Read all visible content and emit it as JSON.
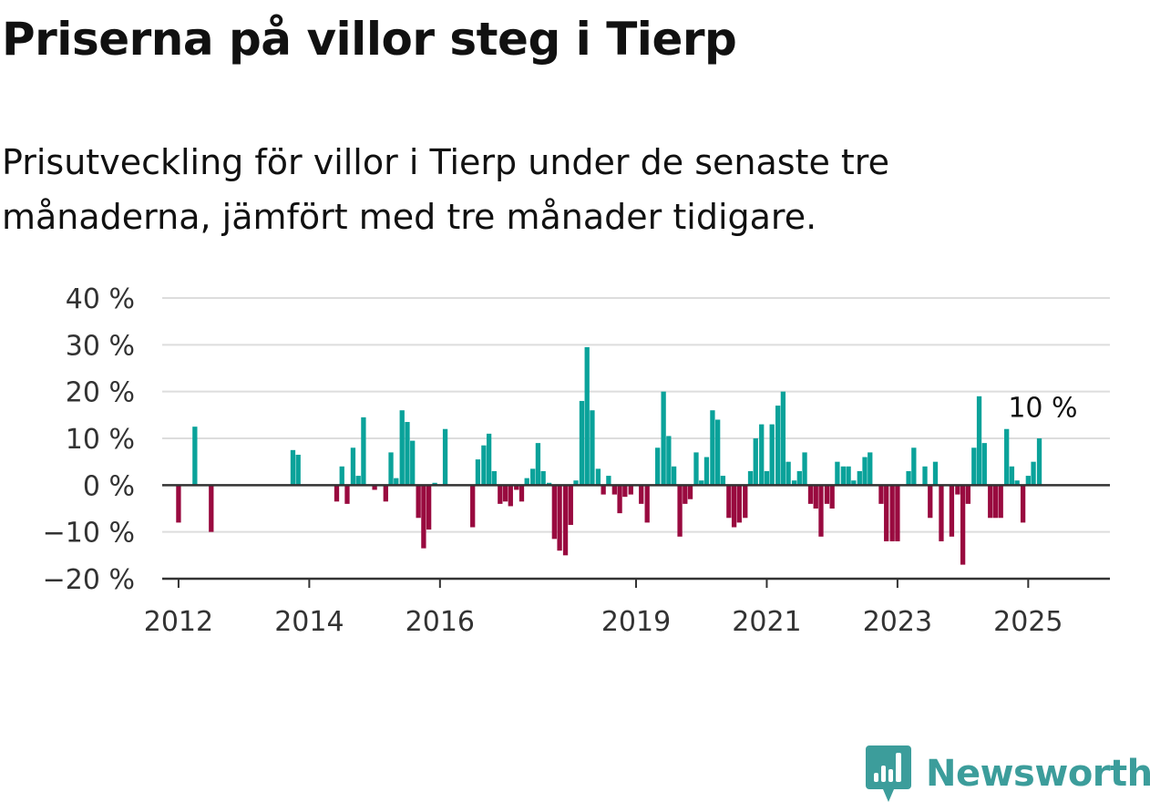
{
  "title": "Priserna på villor steg i Tierp",
  "subtitle": "Prisutveckling för villor i Tierp under de senaste tre månaderna, jämfört med tre månader tidigare.",
  "brand": {
    "name": "Newsworthy",
    "color": "#3c9d9b"
  },
  "colors": {
    "positive": "#0aa29a",
    "negative": "#990a3f",
    "grid": "#dddddd",
    "axis": "#333333"
  },
  "chart_data": {
    "type": "bar",
    "title": "Priserna på villor steg i Tierp",
    "xlabel": "",
    "ylabel": "",
    "unit": "%",
    "ylim": [
      -20,
      40
    ],
    "yticks": [
      40,
      30,
      20,
      10,
      0,
      -10,
      -20
    ],
    "ytick_labels": [
      "40 %",
      "30 %",
      "20 %",
      "10 %",
      "0 %",
      "−10 %",
      "−20 %"
    ],
    "xlim": [
      2011.75,
      2026.25
    ],
    "xticks": [
      2012,
      2014,
      2016,
      2019,
      2021,
      2023,
      2025
    ],
    "xtick_labels": [
      "2012",
      "2014",
      "2016",
      "2019",
      "2021",
      "2023",
      "2025"
    ],
    "grid": true,
    "last_value_label": "10 %",
    "points": [
      {
        "x": 2012.0,
        "y": -8
      },
      {
        "x": 2012.25,
        "y": 12.5
      },
      {
        "x": 2012.5,
        "y": -10
      },
      {
        "x": 2013.75,
        "y": 7.5
      },
      {
        "x": 2013.83,
        "y": 6.5
      },
      {
        "x": 2014.42,
        "y": -3.5
      },
      {
        "x": 2014.5,
        "y": 4
      },
      {
        "x": 2014.58,
        "y": -4
      },
      {
        "x": 2014.67,
        "y": 8
      },
      {
        "x": 2014.75,
        "y": 2
      },
      {
        "x": 2014.83,
        "y": 14.5
      },
      {
        "x": 2015.0,
        "y": -1
      },
      {
        "x": 2015.17,
        "y": -3.5
      },
      {
        "x": 2015.25,
        "y": 7
      },
      {
        "x": 2015.33,
        "y": 1.5
      },
      {
        "x": 2015.42,
        "y": 16
      },
      {
        "x": 2015.5,
        "y": 13.5
      },
      {
        "x": 2015.58,
        "y": 9.5
      },
      {
        "x": 2015.67,
        "y": -7
      },
      {
        "x": 2015.75,
        "y": -13.5
      },
      {
        "x": 2015.83,
        "y": -9.5
      },
      {
        "x": 2015.92,
        "y": 0.5
      },
      {
        "x": 2016.08,
        "y": 12
      },
      {
        "x": 2016.5,
        "y": -9
      },
      {
        "x": 2016.58,
        "y": 5.5
      },
      {
        "x": 2016.67,
        "y": 8.5
      },
      {
        "x": 2016.75,
        "y": 11
      },
      {
        "x": 2016.83,
        "y": 3
      },
      {
        "x": 2016.92,
        "y": -4
      },
      {
        "x": 2017.0,
        "y": -3.5
      },
      {
        "x": 2017.08,
        "y": -4.5
      },
      {
        "x": 2017.17,
        "y": -1
      },
      {
        "x": 2017.25,
        "y": -3.5
      },
      {
        "x": 2017.33,
        "y": 1.5
      },
      {
        "x": 2017.42,
        "y": 3.5
      },
      {
        "x": 2017.5,
        "y": 9
      },
      {
        "x": 2017.58,
        "y": 3
      },
      {
        "x": 2017.67,
        "y": 0.5
      },
      {
        "x": 2017.75,
        "y": -11.5
      },
      {
        "x": 2017.83,
        "y": -14
      },
      {
        "x": 2017.92,
        "y": -15
      },
      {
        "x": 2018.0,
        "y": -8.5
      },
      {
        "x": 2018.08,
        "y": 1
      },
      {
        "x": 2018.17,
        "y": 18
      },
      {
        "x": 2018.25,
        "y": 29.5
      },
      {
        "x": 2018.33,
        "y": 16
      },
      {
        "x": 2018.42,
        "y": 3.5
      },
      {
        "x": 2018.5,
        "y": -2
      },
      {
        "x": 2018.58,
        "y": 2
      },
      {
        "x": 2018.67,
        "y": -2
      },
      {
        "x": 2018.75,
        "y": -6
      },
      {
        "x": 2018.83,
        "y": -2.5
      },
      {
        "x": 2018.92,
        "y": -2
      },
      {
        "x": 2019.08,
        "y": -4
      },
      {
        "x": 2019.17,
        "y": -8
      },
      {
        "x": 2019.33,
        "y": 8
      },
      {
        "x": 2019.42,
        "y": 20
      },
      {
        "x": 2019.5,
        "y": 10.5
      },
      {
        "x": 2019.58,
        "y": 4
      },
      {
        "x": 2019.67,
        "y": -11
      },
      {
        "x": 2019.75,
        "y": -4
      },
      {
        "x": 2019.83,
        "y": -3
      },
      {
        "x": 2019.92,
        "y": 7
      },
      {
        "x": 2020.0,
        "y": 1
      },
      {
        "x": 2020.08,
        "y": 6
      },
      {
        "x": 2020.17,
        "y": 16
      },
      {
        "x": 2020.25,
        "y": 14
      },
      {
        "x": 2020.33,
        "y": 2
      },
      {
        "x": 2020.42,
        "y": -7
      },
      {
        "x": 2020.5,
        "y": -9
      },
      {
        "x": 2020.58,
        "y": -8
      },
      {
        "x": 2020.67,
        "y": -7
      },
      {
        "x": 2020.75,
        "y": 3
      },
      {
        "x": 2020.83,
        "y": 10
      },
      {
        "x": 2020.92,
        "y": 13
      },
      {
        "x": 2021.0,
        "y": 3
      },
      {
        "x": 2021.08,
        "y": 13
      },
      {
        "x": 2021.17,
        "y": 17
      },
      {
        "x": 2021.25,
        "y": 20
      },
      {
        "x": 2021.33,
        "y": 5
      },
      {
        "x": 2021.42,
        "y": 1
      },
      {
        "x": 2021.5,
        "y": 3
      },
      {
        "x": 2021.58,
        "y": 7
      },
      {
        "x": 2021.67,
        "y": -4
      },
      {
        "x": 2021.75,
        "y": -5
      },
      {
        "x": 2021.83,
        "y": -11
      },
      {
        "x": 2021.92,
        "y": -4
      },
      {
        "x": 2022.0,
        "y": -5
      },
      {
        "x": 2022.08,
        "y": 5
      },
      {
        "x": 2022.17,
        "y": 4
      },
      {
        "x": 2022.25,
        "y": 4
      },
      {
        "x": 2022.33,
        "y": 1
      },
      {
        "x": 2022.42,
        "y": 3
      },
      {
        "x": 2022.5,
        "y": 6
      },
      {
        "x": 2022.58,
        "y": 7
      },
      {
        "x": 2022.75,
        "y": -4
      },
      {
        "x": 2022.83,
        "y": -12
      },
      {
        "x": 2022.92,
        "y": -12
      },
      {
        "x": 2023.0,
        "y": -12
      },
      {
        "x": 2023.17,
        "y": 3
      },
      {
        "x": 2023.25,
        "y": 8
      },
      {
        "x": 2023.42,
        "y": 4
      },
      {
        "x": 2023.5,
        "y": -7
      },
      {
        "x": 2023.58,
        "y": 5
      },
      {
        "x": 2023.67,
        "y": -12
      },
      {
        "x": 2023.83,
        "y": -11
      },
      {
        "x": 2023.92,
        "y": -2
      },
      {
        "x": 2024.0,
        "y": -17
      },
      {
        "x": 2024.08,
        "y": -4
      },
      {
        "x": 2024.17,
        "y": 8
      },
      {
        "x": 2024.25,
        "y": 19
      },
      {
        "x": 2024.33,
        "y": 9
      },
      {
        "x": 2024.42,
        "y": -7
      },
      {
        "x": 2024.5,
        "y": -7
      },
      {
        "x": 2024.58,
        "y": -7
      },
      {
        "x": 2024.67,
        "y": 12
      },
      {
        "x": 2024.75,
        "y": 4
      },
      {
        "x": 2024.83,
        "y": 1
      },
      {
        "x": 2024.92,
        "y": -8
      },
      {
        "x": 2025.0,
        "y": 2
      },
      {
        "x": 2025.08,
        "y": 5
      },
      {
        "x": 2025.17,
        "y": 10
      }
    ]
  }
}
